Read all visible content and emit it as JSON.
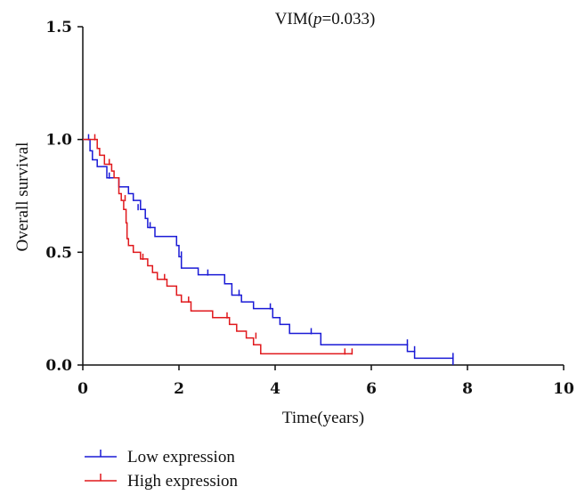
{
  "chart_data": {
    "type": "line",
    "subtype": "kaplan-meier",
    "title_prefix": "VIM(",
    "title_p": "p",
    "title_suffix": "=0.033)",
    "xlabel": "Time(years)",
    "ylabel": "Overall survival",
    "xlim": [
      0,
      10
    ],
    "ylim": [
      0,
      1.5
    ],
    "x_ticks": [
      "0",
      "2",
      "4",
      "6",
      "8",
      "10"
    ],
    "x_tick_values": [
      0,
      2,
      4,
      6,
      8,
      10
    ],
    "y_ticks": [
      "0.0",
      "0.5",
      "1.0",
      "1.5"
    ],
    "y_tick_values": [
      0,
      0.5,
      1.0,
      1.5
    ],
    "legend_position": "bottom-left",
    "series": [
      {
        "name": "Low expression",
        "color": "#1a1ad6",
        "steps": [
          [
            0,
            1.0
          ],
          [
            0.15,
            0.95
          ],
          [
            0.2,
            0.91
          ],
          [
            0.3,
            0.88
          ],
          [
            0.5,
            0.83
          ],
          [
            0.75,
            0.79
          ],
          [
            0.95,
            0.76
          ],
          [
            1.05,
            0.73
          ],
          [
            1.2,
            0.69
          ],
          [
            1.3,
            0.65
          ],
          [
            1.35,
            0.61
          ],
          [
            1.5,
            0.57
          ],
          [
            1.95,
            0.53
          ],
          [
            2.0,
            0.48
          ],
          [
            2.05,
            0.43
          ],
          [
            2.4,
            0.4
          ],
          [
            2.95,
            0.36
          ],
          [
            3.1,
            0.31
          ],
          [
            3.3,
            0.28
          ],
          [
            3.55,
            0.25
          ],
          [
            3.95,
            0.21
          ],
          [
            4.1,
            0.18
          ],
          [
            4.3,
            0.14
          ],
          [
            4.95,
            0.09
          ],
          [
            6.75,
            0.06
          ],
          [
            6.9,
            0.03
          ],
          [
            7.7,
            0.0
          ]
        ],
        "end": 7.7,
        "censors": [
          [
            0.12,
            1.0
          ],
          [
            0.55,
            0.83
          ],
          [
            1.15,
            0.69
          ],
          [
            1.4,
            0.61
          ],
          [
            2.05,
            0.48
          ],
          [
            2.6,
            0.4
          ],
          [
            3.25,
            0.31
          ],
          [
            3.9,
            0.25
          ],
          [
            4.75,
            0.14
          ],
          [
            6.75,
            0.09
          ],
          [
            6.9,
            0.06
          ],
          [
            7.7,
            0.03
          ]
        ]
      },
      {
        "name": "High expression",
        "color": "#e0181c",
        "steps": [
          [
            0,
            1.0
          ],
          [
            0.3,
            0.96
          ],
          [
            0.35,
            0.93
          ],
          [
            0.45,
            0.89
          ],
          [
            0.6,
            0.86
          ],
          [
            0.65,
            0.83
          ],
          [
            0.75,
            0.76
          ],
          [
            0.8,
            0.73
          ],
          [
            0.85,
            0.69
          ],
          [
            0.9,
            0.63
          ],
          [
            0.92,
            0.56
          ],
          [
            0.95,
            0.53
          ],
          [
            1.05,
            0.5
          ],
          [
            1.2,
            0.47
          ],
          [
            1.35,
            0.44
          ],
          [
            1.45,
            0.41
          ],
          [
            1.55,
            0.38
          ],
          [
            1.75,
            0.35
          ],
          [
            1.95,
            0.31
          ],
          [
            2.05,
            0.28
          ],
          [
            2.25,
            0.24
          ],
          [
            2.7,
            0.21
          ],
          [
            3.05,
            0.18
          ],
          [
            3.2,
            0.15
          ],
          [
            3.4,
            0.12
          ],
          [
            3.55,
            0.09
          ],
          [
            3.7,
            0.05
          ]
        ],
        "end": 5.6,
        "censors": [
          [
            0.25,
            1.0
          ],
          [
            0.55,
            0.89
          ],
          [
            0.88,
            0.73
          ],
          [
            1.25,
            0.47
          ],
          [
            1.7,
            0.38
          ],
          [
            2.2,
            0.28
          ],
          [
            3.0,
            0.21
          ],
          [
            3.6,
            0.12
          ],
          [
            5.45,
            0.05
          ],
          [
            5.6,
            0.05
          ]
        ]
      }
    ]
  }
}
